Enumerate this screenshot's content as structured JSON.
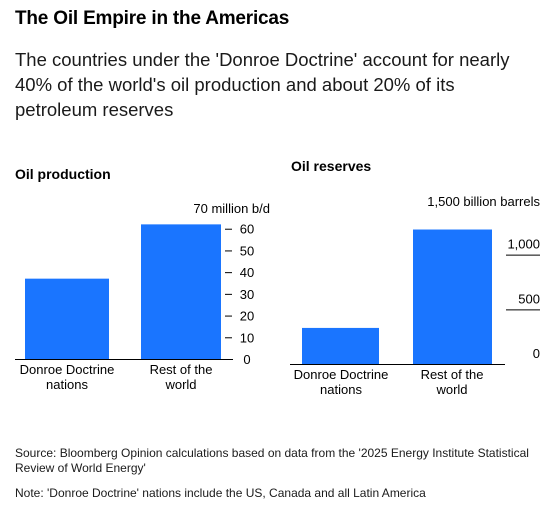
{
  "header": {
    "title": "The Oil Empire in the Americas",
    "subtitle": "The countries under the 'Donroe Doctrine' account for nearly 40% of the world's oil production and about 20% of its petroleum reserves"
  },
  "colors": {
    "bar": "#1a75ff",
    "axis": "#000000"
  },
  "chart_data": [
    {
      "type": "bar",
      "title": "Oil production",
      "categories": [
        "Donroe Doctrine nations",
        "Rest of the world"
      ],
      "values": [
        37,
        62
      ],
      "ylim": [
        0,
        70
      ],
      "yticks": [
        0,
        10,
        20,
        30,
        40,
        50,
        60
      ],
      "ytick_labels": [
        "0",
        "10",
        "20",
        "30",
        "40",
        "50",
        "60"
      ],
      "top_label": "70 million b/d",
      "y_axis_side": "right",
      "grid": false
    },
    {
      "type": "bar",
      "title": "Oil reserves",
      "categories": [
        "Donroe Doctrine nations",
        "Rest of the world"
      ],
      "values": [
        330,
        1230
      ],
      "ylim": [
        0,
        1500
      ],
      "yticks": [
        0,
        500,
        1000
      ],
      "ytick_labels": [
        "0",
        "500",
        "1,000"
      ],
      "top_label": "1,500 billion barrels",
      "y_axis_side": "right",
      "grid": false
    }
  ],
  "footer": {
    "source": "Source: Bloomberg Opinion calculations based on data from the '2025 Energy Institute Statistical Review of World Energy'",
    "note": "Note: 'Donroe Doctrine' nations include the US, Canada and all Latin America"
  }
}
